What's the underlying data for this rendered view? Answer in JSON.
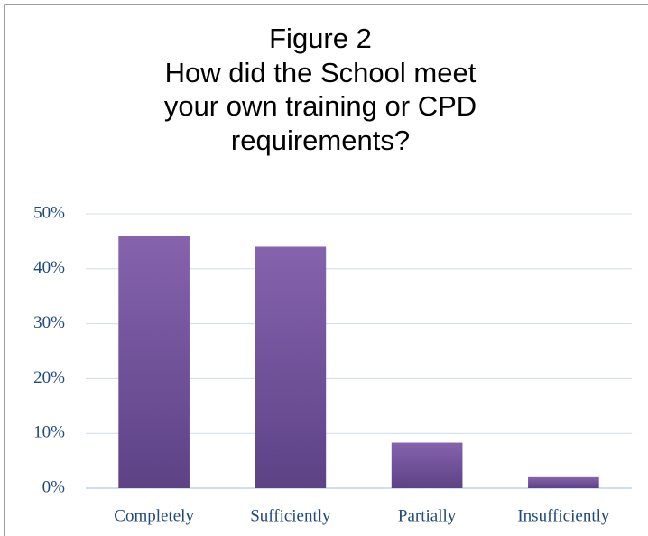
{
  "chart_data": {
    "type": "bar",
    "title": "Figure 2",
    "subtitle": "How did the School meet your own training or CPD requirements?",
    "categories": [
      "Completely",
      "Sufficiently",
      "Partially",
      "Insufficiently"
    ],
    "values": [
      46,
      44,
      8.3,
      2
    ],
    "color": "#7b5ba8",
    "ylim": [
      0,
      50
    ],
    "yticks": [
      {
        "value": 0,
        "label": "0%"
      },
      {
        "value": 10,
        "label": "10%"
      },
      {
        "value": 20,
        "label": "20%"
      },
      {
        "value": 30,
        "label": "30%"
      },
      {
        "value": 40,
        "label": "40%"
      },
      {
        "value": 50,
        "label": "50%"
      }
    ],
    "grid": true
  }
}
